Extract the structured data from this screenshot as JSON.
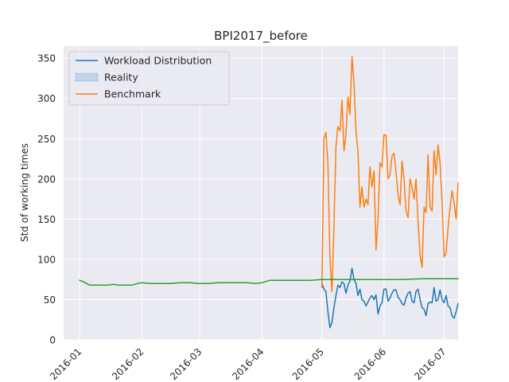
{
  "chart_data": {
    "type": "line",
    "title": "BPI2017_before",
    "xlabel": "",
    "ylabel": "Std of working times",
    "xlim": [
      "2015-12-24",
      "2016-07-08"
    ],
    "ylim": [
      0,
      365
    ],
    "x_ticks": [
      "2016-01",
      "2016-02",
      "2016-03",
      "2016-04",
      "2016-05",
      "2016-06",
      "2016-07"
    ],
    "y_ticks": [
      0,
      50,
      100,
      150,
      200,
      250,
      300,
      350
    ],
    "grid": true,
    "legend": "top-left",
    "legend_entries": [
      "Workload Distribution",
      "Reality",
      "Benchmark"
    ],
    "series": [
      {
        "name": "Workload Distribution",
        "color": "#1f77b4",
        "points": [
          [
            "2016-05-01",
            70
          ],
          [
            "2016-05-02",
            63
          ],
          [
            "2016-05-03",
            60
          ],
          [
            "2016-05-04",
            35
          ],
          [
            "2016-05-05",
            15
          ],
          [
            "2016-05-06",
            22
          ],
          [
            "2016-05-07",
            40
          ],
          [
            "2016-05-08",
            55
          ],
          [
            "2016-05-09",
            68
          ],
          [
            "2016-05-10",
            65
          ],
          [
            "2016-05-11",
            72
          ],
          [
            "2016-05-12",
            70
          ],
          [
            "2016-05-13",
            58
          ],
          [
            "2016-05-14",
            68
          ],
          [
            "2016-05-15",
            73
          ],
          [
            "2016-05-16",
            89
          ],
          [
            "2016-05-17",
            75
          ],
          [
            "2016-05-18",
            70
          ],
          [
            "2016-05-19",
            55
          ],
          [
            "2016-05-20",
            63
          ],
          [
            "2016-05-21",
            50
          ],
          [
            "2016-05-22",
            48
          ],
          [
            "2016-05-23",
            42
          ],
          [
            "2016-05-24",
            47
          ],
          [
            "2016-05-25",
            52
          ],
          [
            "2016-05-26",
            55
          ],
          [
            "2016-05-27",
            50
          ],
          [
            "2016-05-28",
            56
          ],
          [
            "2016-05-29",
            32
          ],
          [
            "2016-05-30",
            42
          ],
          [
            "2016-05-31",
            46
          ],
          [
            "2016-06-01",
            63
          ],
          [
            "2016-06-02",
            63
          ],
          [
            "2016-06-03",
            48
          ],
          [
            "2016-06-04",
            52
          ],
          [
            "2016-06-05",
            58
          ],
          [
            "2016-06-06",
            62
          ],
          [
            "2016-06-07",
            62
          ],
          [
            "2016-06-08",
            53
          ],
          [
            "2016-06-09",
            50
          ],
          [
            "2016-06-10",
            45
          ],
          [
            "2016-06-11",
            43
          ],
          [
            "2016-06-12",
            52
          ],
          [
            "2016-06-13",
            58
          ],
          [
            "2016-06-14",
            60
          ],
          [
            "2016-06-15",
            48
          ],
          [
            "2016-06-16",
            46
          ],
          [
            "2016-06-17",
            60
          ],
          [
            "2016-06-18",
            63
          ],
          [
            "2016-06-19",
            50
          ],
          [
            "2016-06-20",
            40
          ],
          [
            "2016-06-21",
            38
          ],
          [
            "2016-06-22",
            30
          ],
          [
            "2016-06-23",
            45
          ],
          [
            "2016-06-24",
            47
          ],
          [
            "2016-06-25",
            46
          ],
          [
            "2016-06-26",
            65
          ],
          [
            "2016-06-27",
            48
          ],
          [
            "2016-06-28",
            50
          ],
          [
            "2016-06-29",
            62
          ],
          [
            "2016-06-30",
            50
          ],
          [
            "2016-07-01",
            46
          ],
          [
            "2016-07-02",
            55
          ],
          [
            "2016-07-03",
            42
          ],
          [
            "2016-07-04",
            40
          ],
          [
            "2016-07-05",
            30
          ],
          [
            "2016-07-06",
            27
          ],
          [
            "2016-07-07",
            35
          ],
          [
            "2016-07-08",
            45
          ]
        ]
      },
      {
        "name": "Benchmark",
        "color": "#ff7f0e",
        "points": [
          [
            "2016-05-01",
            65
          ],
          [
            "2016-05-02",
            250
          ],
          [
            "2016-05-03",
            258
          ],
          [
            "2016-05-04",
            220
          ],
          [
            "2016-05-05",
            100
          ],
          [
            "2016-05-06",
            60
          ],
          [
            "2016-05-07",
            140
          ],
          [
            "2016-05-08",
            240
          ],
          [
            "2016-05-09",
            265
          ],
          [
            "2016-05-10",
            260
          ],
          [
            "2016-05-11",
            298
          ],
          [
            "2016-05-12",
            235
          ],
          [
            "2016-05-13",
            255
          ],
          [
            "2016-05-14",
            302
          ],
          [
            "2016-05-15",
            280
          ],
          [
            "2016-05-16",
            352
          ],
          [
            "2016-05-17",
            320
          ],
          [
            "2016-05-18",
            260
          ],
          [
            "2016-05-19",
            235
          ],
          [
            "2016-05-20",
            165
          ],
          [
            "2016-05-21",
            190
          ],
          [
            "2016-05-22",
            165
          ],
          [
            "2016-05-23",
            175
          ],
          [
            "2016-05-24",
            168
          ],
          [
            "2016-05-25",
            215
          ],
          [
            "2016-05-26",
            190
          ],
          [
            "2016-05-27",
            210
          ],
          [
            "2016-05-28",
            112
          ],
          [
            "2016-05-29",
            150
          ],
          [
            "2016-05-30",
            220
          ],
          [
            "2016-05-31",
            215
          ],
          [
            "2016-06-01",
            255
          ],
          [
            "2016-06-02",
            254
          ],
          [
            "2016-06-03",
            200
          ],
          [
            "2016-06-04",
            205
          ],
          [
            "2016-06-05",
            228
          ],
          [
            "2016-06-06",
            232
          ],
          [
            "2016-06-07",
            210
          ],
          [
            "2016-06-08",
            180
          ],
          [
            "2016-06-09",
            168
          ],
          [
            "2016-06-10",
            222
          ],
          [
            "2016-06-11",
            200
          ],
          [
            "2016-06-12",
            160
          ],
          [
            "2016-06-13",
            152
          ],
          [
            "2016-06-14",
            200
          ],
          [
            "2016-06-15",
            190
          ],
          [
            "2016-06-16",
            175
          ],
          [
            "2016-06-17",
            200
          ],
          [
            "2016-06-18",
            148
          ],
          [
            "2016-06-19",
            105
          ],
          [
            "2016-06-20",
            90
          ],
          [
            "2016-06-21",
            165
          ],
          [
            "2016-06-22",
            158
          ],
          [
            "2016-06-23",
            230
          ],
          [
            "2016-06-24",
            165
          ],
          [
            "2016-06-25",
            160
          ],
          [
            "2016-06-26",
            235
          ],
          [
            "2016-06-27",
            205
          ],
          [
            "2016-06-28",
            242
          ],
          [
            "2016-06-29",
            220
          ],
          [
            "2016-06-30",
            170
          ],
          [
            "2016-07-01",
            103
          ],
          [
            "2016-07-02",
            108
          ],
          [
            "2016-07-03",
            140
          ],
          [
            "2016-07-04",
            165
          ],
          [
            "2016-07-05",
            185
          ],
          [
            "2016-07-06",
            170
          ],
          [
            "2016-07-07",
            150
          ],
          [
            "2016-07-08",
            195
          ]
        ]
      },
      {
        "name": "",
        "color": "#2ca02c",
        "points": [
          [
            "2016-01-01",
            74
          ],
          [
            "2016-01-03",
            72
          ],
          [
            "2016-01-06",
            68
          ],
          [
            "2016-01-10",
            68
          ],
          [
            "2016-01-15",
            68
          ],
          [
            "2016-01-18",
            69
          ],
          [
            "2016-01-20",
            68
          ],
          [
            "2016-01-24",
            68
          ],
          [
            "2016-01-27",
            68
          ],
          [
            "2016-01-30",
            70
          ],
          [
            "2016-02-01",
            71
          ],
          [
            "2016-02-06",
            70
          ],
          [
            "2016-02-10",
            70
          ],
          [
            "2016-02-15",
            70
          ],
          [
            "2016-02-20",
            71
          ],
          [
            "2016-02-25",
            71
          ],
          [
            "2016-03-01",
            70
          ],
          [
            "2016-03-05",
            70
          ],
          [
            "2016-03-10",
            71
          ],
          [
            "2016-03-15",
            71
          ],
          [
            "2016-03-20",
            71
          ],
          [
            "2016-03-25",
            71
          ],
          [
            "2016-03-29",
            70
          ],
          [
            "2016-04-01",
            71
          ],
          [
            "2016-04-05",
            74
          ],
          [
            "2016-04-10",
            74
          ],
          [
            "2016-04-15",
            74
          ],
          [
            "2016-04-20",
            74
          ],
          [
            "2016-04-25",
            74
          ],
          [
            "2016-05-01",
            75
          ],
          [
            "2016-05-10",
            75
          ],
          [
            "2016-05-20",
            75
          ],
          [
            "2016-05-31",
            75
          ],
          [
            "2016-06-10",
            75
          ],
          [
            "2016-06-20",
            76
          ],
          [
            "2016-06-30",
            76
          ],
          [
            "2016-07-08",
            76
          ]
        ]
      }
    ]
  }
}
